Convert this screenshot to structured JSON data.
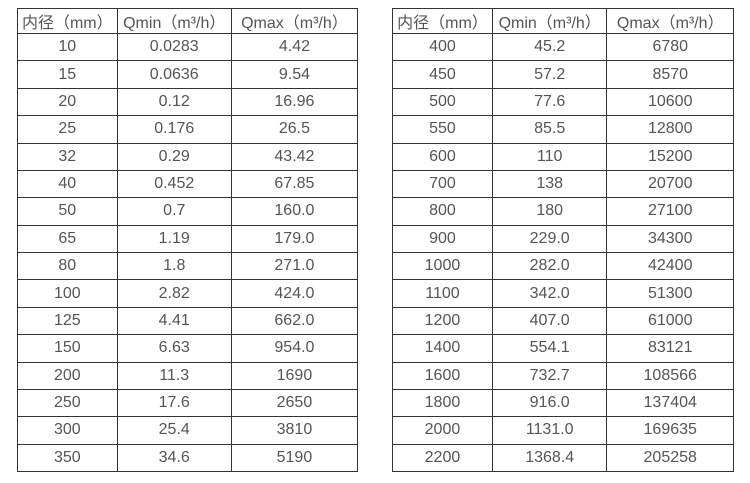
{
  "colors": {
    "background": "#ffffff",
    "border": "#333333",
    "text": "#555555"
  },
  "tables": [
    {
      "name": "flow-table-small-diameters",
      "headers": [
        "内径（mm）",
        "Qmin（m³/h）",
        "Qmax（m³/h）"
      ],
      "rows": [
        [
          "10",
          "0.0283",
          "4.42"
        ],
        [
          "15",
          "0.0636",
          "9.54"
        ],
        [
          "20",
          "0.12",
          "16.96"
        ],
        [
          "25",
          "0.176",
          "26.5"
        ],
        [
          "32",
          "0.29",
          "43.42"
        ],
        [
          "40",
          "0.452",
          "67.85"
        ],
        [
          "50",
          "0.7",
          "160.0"
        ],
        [
          "65",
          "1.19",
          "179.0"
        ],
        [
          "80",
          "1.8",
          "271.0"
        ],
        [
          "100",
          "2.82",
          "424.0"
        ],
        [
          "125",
          "4.41",
          "662.0"
        ],
        [
          "150",
          "6.63",
          "954.0"
        ],
        [
          "200",
          "11.3",
          "1690"
        ],
        [
          "250",
          "17.6",
          "2650"
        ],
        [
          "300",
          "25.4",
          "3810"
        ],
        [
          "350",
          "34.6",
          "5190"
        ]
      ]
    },
    {
      "name": "flow-table-large-diameters",
      "headers": [
        "内径（mm）",
        "Qmin（m³/h）",
        "Qmax（m³/h）"
      ],
      "rows": [
        [
          "400",
          "45.2",
          "6780"
        ],
        [
          "450",
          "57.2",
          "8570"
        ],
        [
          "500",
          "77.6",
          "10600"
        ],
        [
          "550",
          "85.5",
          "12800"
        ],
        [
          "600",
          "110",
          "15200"
        ],
        [
          "700",
          "138",
          "20700"
        ],
        [
          "800",
          "180",
          "27100"
        ],
        [
          "900",
          "229.0",
          "34300"
        ],
        [
          "1000",
          "282.0",
          "42400"
        ],
        [
          "1100",
          "342.0",
          "51300"
        ],
        [
          "1200",
          "407.0",
          "61000"
        ],
        [
          "1400",
          "554.1",
          "83121"
        ],
        [
          "1600",
          "732.7",
          "108566"
        ],
        [
          "1800",
          "916.0",
          "137404"
        ],
        [
          "2000",
          "1131.0",
          "169635"
        ],
        [
          "2200",
          "1368.4",
          "205258"
        ]
      ]
    }
  ]
}
